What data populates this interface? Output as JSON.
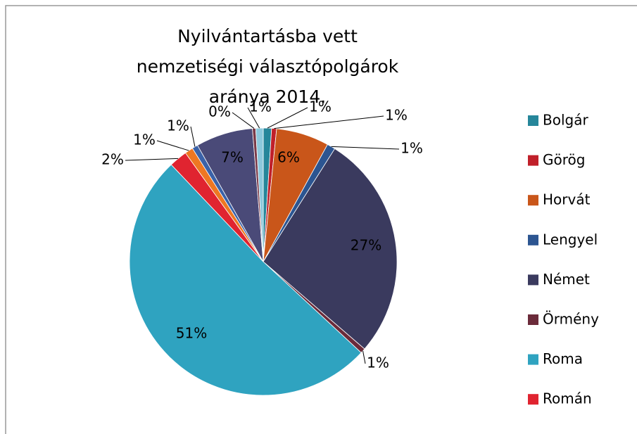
{
  "chart_data": {
    "type": "pie",
    "title": "Nyilvántartásba vett nemzetiségi választópolgárok aránya 2014.",
    "categories": [
      "Bolgár",
      "Görög",
      "Horvát",
      "Lengyel",
      "Német",
      "Örmény",
      "Roma",
      "Román",
      null,
      null,
      null,
      null,
      null
    ],
    "values": [
      1.0,
      0.6,
      6.4,
      1.0,
      27.4,
      0.6,
      51.1,
      2.2,
      1.0,
      0.7,
      6.9,
      0.4,
      0.9
    ],
    "value_labels": [
      "1%",
      "1%",
      "6%",
      "1%",
      "27%",
      "1%",
      "51%",
      "2%",
      "1%",
      "1%",
      "7%",
      "0%",
      "1%"
    ],
    "colors": [
      "#26869a",
      "#c0202a",
      "#c9561a",
      "#2c5591",
      "#3a3a5e",
      "#6b2b3a",
      "#2fa3c0",
      "#e02430",
      "#ee7722",
      "#3b62a8",
      "#4a4a78",
      "#7a3a48",
      "#8cc8dc"
    ],
    "legend": "right"
  }
}
